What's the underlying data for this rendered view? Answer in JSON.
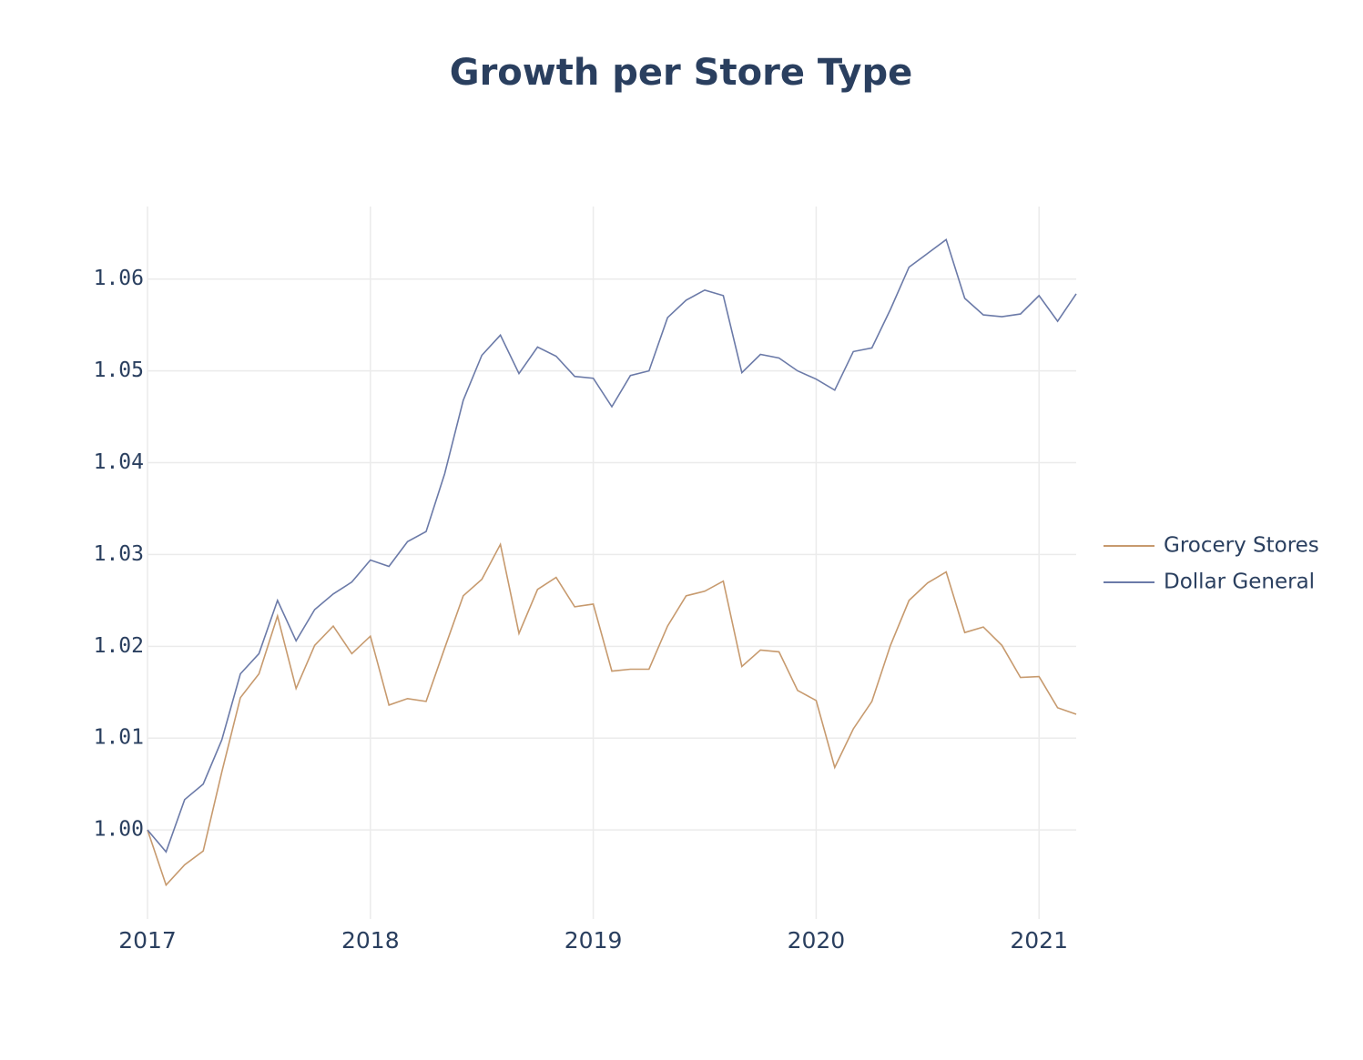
{
  "chart_data": {
    "type": "line",
    "title": "Growth per Store Type",
    "x": [
      "2017-01",
      "2017-02",
      "2017-03",
      "2017-04",
      "2017-05",
      "2017-06",
      "2017-07",
      "2017-08",
      "2017-09",
      "2017-10",
      "2017-11",
      "2017-12",
      "2018-01",
      "2018-02",
      "2018-03",
      "2018-04",
      "2018-05",
      "2018-06",
      "2018-07",
      "2018-08",
      "2018-09",
      "2018-10",
      "2018-11",
      "2018-12",
      "2019-01",
      "2019-02",
      "2019-03",
      "2019-04",
      "2019-05",
      "2019-06",
      "2019-07",
      "2019-08",
      "2019-09",
      "2019-10",
      "2019-11",
      "2019-12",
      "2020-01",
      "2020-02",
      "2020-03",
      "2020-04",
      "2020-05",
      "2020-06",
      "2020-07",
      "2020-08",
      "2020-09",
      "2020-10",
      "2020-11",
      "2020-12",
      "2021-01",
      "2021-02",
      "2021-03"
    ],
    "series": [
      {
        "name": "Grocery Stores",
        "color": "#c79a6e",
        "values": [
          1.0,
          0.994,
          0.9962,
          0.9977,
          1.0063,
          1.0144,
          1.017,
          1.0233,
          1.0154,
          1.0201,
          1.0222,
          1.0192,
          1.0211,
          1.0136,
          1.0143,
          1.014,
          1.0198,
          1.0255,
          1.0273,
          1.0311,
          1.0214,
          1.0262,
          1.0275,
          1.0243,
          1.0246,
          1.0173,
          1.0175,
          1.0175,
          1.0222,
          1.0255,
          1.026,
          1.0271,
          1.0178,
          1.0196,
          1.0194,
          1.0152,
          1.0141,
          1.0068,
          1.011,
          1.014,
          1.0201,
          1.025,
          1.0269,
          1.0281,
          1.0215,
          1.0221,
          1.0201,
          1.0166,
          1.0167,
          1.0133,
          1.0126
        ]
      },
      {
        "name": "Dollar General",
        "color": "#6b7aa8",
        "values": [
          1.0,
          0.9976,
          1.0033,
          1.005,
          1.0098,
          1.017,
          1.0192,
          1.025,
          1.0206,
          1.024,
          1.0257,
          1.027,
          1.0294,
          1.0287,
          1.0314,
          1.0325,
          1.0388,
          1.0468,
          1.0517,
          1.0539,
          1.0497,
          1.0526,
          1.0516,
          1.0494,
          1.0492,
          1.0461,
          1.0495,
          1.05,
          1.0558,
          1.0577,
          1.0588,
          1.0582,
          1.0498,
          1.0518,
          1.0514,
          1.05,
          1.0491,
          1.0479,
          1.0521,
          1.0525,
          1.0567,
          1.0613,
          1.0628,
          1.0643,
          1.0579,
          1.0561,
          1.0559,
          1.0562,
          1.0582,
          1.0554,
          1.0584
        ]
      }
    ],
    "xlim": [
      "2017-01",
      "2021-03"
    ],
    "xticks": [
      {
        "value": "2017-01",
        "label": "2017"
      },
      {
        "value": "2018-01",
        "label": "2018"
      },
      {
        "value": "2019-01",
        "label": "2019"
      },
      {
        "value": "2020-01",
        "label": "2020"
      },
      {
        "value": "2021-01",
        "label": "2021"
      }
    ],
    "ylim": [
      0.9903,
      1.0679
    ],
    "yticks": [
      {
        "value": 1.0,
        "label": "1.00"
      },
      1.01,
      1.02,
      1.03,
      1.04,
      1.05,
      1.06
    ],
    "grid": true,
    "legend": "right"
  }
}
